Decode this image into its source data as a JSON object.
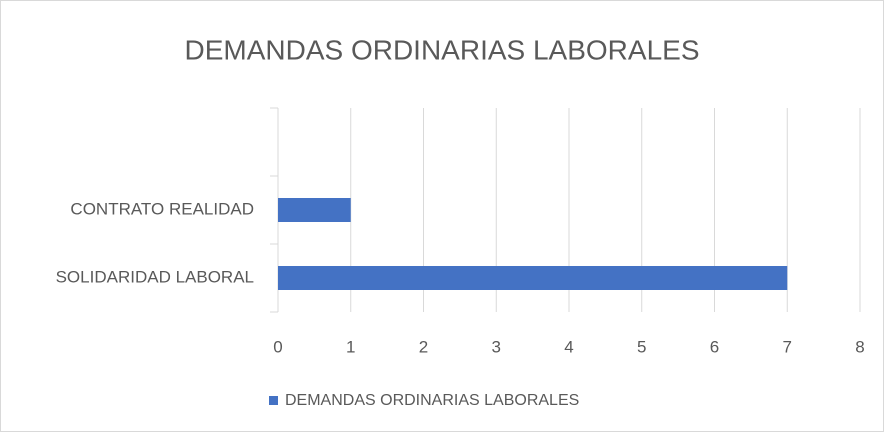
{
  "chart_data": {
    "type": "barh",
    "title": "DEMANDAS ORDINARIAS LABORALES",
    "categories": [
      "SOLIDARIDAD LABORAL",
      "CONTRATO REALIDAD",
      null
    ],
    "series": [
      {
        "name": "DEMANDAS ORDINARIAS LABORALES",
        "color": "#4472c4",
        "values": [
          7,
          1,
          null
        ]
      }
    ],
    "xlim": [
      0,
      8
    ],
    "xticks": [
      0,
      1,
      2,
      3,
      4,
      5,
      6,
      7,
      8
    ],
    "grid": true,
    "legend": "bottom"
  }
}
